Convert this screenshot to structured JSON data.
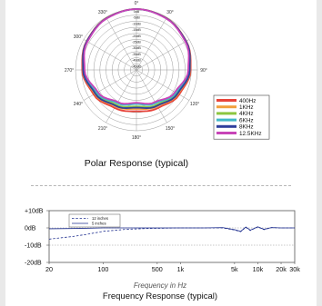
{
  "chart_data": [
    {
      "type": "polar",
      "title": "Polar Response (typical)",
      "angle_labels": [
        "0°",
        "30°",
        "90°",
        "120°",
        "150°",
        "180°",
        "210°",
        "240°",
        "270°",
        "300°",
        "330°"
      ],
      "radial_labels": [
        "0dB",
        "-5dB",
        "-10dB",
        "-15dB",
        "-20dB",
        "-25dB",
        "-30dB",
        "-35dB",
        "-40dB",
        "-45dB"
      ],
      "legend_position": "right",
      "series": [
        {
          "name": "400Hz",
          "color": "#e8443a",
          "angles": [
            0,
            30,
            60,
            90,
            120,
            150,
            180,
            210,
            240,
            270,
            300,
            330
          ],
          "values": [
            0,
            -0.8,
            -2.8,
            -5.5,
            -9.5,
            -14,
            -16,
            -14,
            -9.5,
            -5.5,
            -2.8,
            -0.8
          ]
        },
        {
          "name": "1KHz",
          "color": "#f2a03d",
          "angles": [
            0,
            30,
            60,
            90,
            120,
            150,
            180,
            210,
            240,
            270,
            300,
            330
          ],
          "values": [
            0,
            -0.9,
            -3.0,
            -6.0,
            -10.5,
            -15.5,
            -18,
            -15.5,
            -10.5,
            -6.0,
            -3.0,
            -0.9
          ]
        },
        {
          "name": "4KHz",
          "color": "#8cc63f",
          "angles": [
            0,
            30,
            60,
            90,
            120,
            150,
            180,
            210,
            240,
            270,
            300,
            330
          ],
          "values": [
            0,
            -1.0,
            -3.2,
            -6.5,
            -11.5,
            -17,
            -20,
            -17,
            -11.5,
            -6.5,
            -3.2,
            -1.0
          ]
        },
        {
          "name": "6KHz",
          "color": "#3fb8c8",
          "angles": [
            0,
            30,
            60,
            90,
            120,
            150,
            180,
            210,
            240,
            270,
            300,
            330
          ],
          "values": [
            0,
            -1.1,
            -3.4,
            -7.0,
            -12.5,
            -18.5,
            -22,
            -18.5,
            -12.5,
            -7.0,
            -3.4,
            -1.1
          ]
        },
        {
          "name": "8KHz",
          "color": "#2f3f9c",
          "angles": [
            0,
            30,
            60,
            90,
            120,
            150,
            180,
            210,
            240,
            270,
            300,
            330
          ],
          "values": [
            0,
            -1.0,
            -3.0,
            -6.2,
            -11,
            -16,
            -19,
            -16,
            -11,
            -6.2,
            -3.0,
            -1.0
          ]
        },
        {
          "name": "12.5KHz",
          "color": "#c844b8",
          "angles": [
            0,
            30,
            60,
            90,
            120,
            150,
            180,
            210,
            240,
            270,
            300,
            330
          ],
          "values": [
            0,
            -1.2,
            -3.6,
            -7.5,
            -13.5,
            -19.5,
            -23,
            -19.5,
            -13.5,
            -7.5,
            -3.6,
            -1.2
          ]
        }
      ]
    },
    {
      "type": "line",
      "title": "Frequency Response (typical)",
      "xlabel": "Frequency in Hz",
      "x_scale": "log",
      "xlim": [
        20,
        30000
      ],
      "ylim": [
        -20,
        10
      ],
      "x_ticks": [
        {
          "value": 20,
          "label": "20"
        },
        {
          "value": 100,
          "label": "100"
        },
        {
          "value": 500,
          "label": "500"
        },
        {
          "value": 1000,
          "label": "1k"
        },
        {
          "value": 5000,
          "label": "5k"
        },
        {
          "value": 10000,
          "label": "10k"
        },
        {
          "value": 20000,
          "label": "20k"
        },
        {
          "value": 30000,
          "label": "30k"
        }
      ],
      "y_ticks": [
        {
          "value": 10,
          "label": "+10dB"
        },
        {
          "value": 0,
          "label": "0dB"
        },
        {
          "value": -10,
          "label": "-10dB"
        },
        {
          "value": -20,
          "label": "-20dB"
        }
      ],
      "grid": true,
      "legend_position": "top-left",
      "series": [
        {
          "name": "12 inches",
          "style": "dashed",
          "color": "#1f2f8f",
          "x": [
            20,
            40,
            60,
            100,
            200,
            400,
            1000,
            2000,
            3500,
            5000,
            6000,
            7000,
            8000,
            10000,
            12000,
            15000,
            20000,
            30000
          ],
          "y": [
            -6.5,
            -5,
            -3.8,
            -2,
            -0.8,
            -0.3,
            0,
            0,
            0,
            -1.2,
            -2.2,
            0.4,
            -1.5,
            0.6,
            -1.0,
            0.2,
            0,
            0
          ]
        },
        {
          "name": "5 inches",
          "style": "solid",
          "color": "#1f2f8f",
          "x": [
            20,
            50,
            100,
            200,
            500,
            1000,
            2000,
            3500,
            5000,
            6000,
            7000,
            8000,
            10000,
            12000,
            15000,
            20000,
            30000
          ],
          "y": [
            -0.5,
            -0.3,
            0,
            0,
            0,
            0,
            0,
            0.2,
            -1.0,
            -2.0,
            0.5,
            -1.3,
            0.6,
            -0.8,
            0.2,
            0,
            0
          ]
        }
      ]
    }
  ]
}
